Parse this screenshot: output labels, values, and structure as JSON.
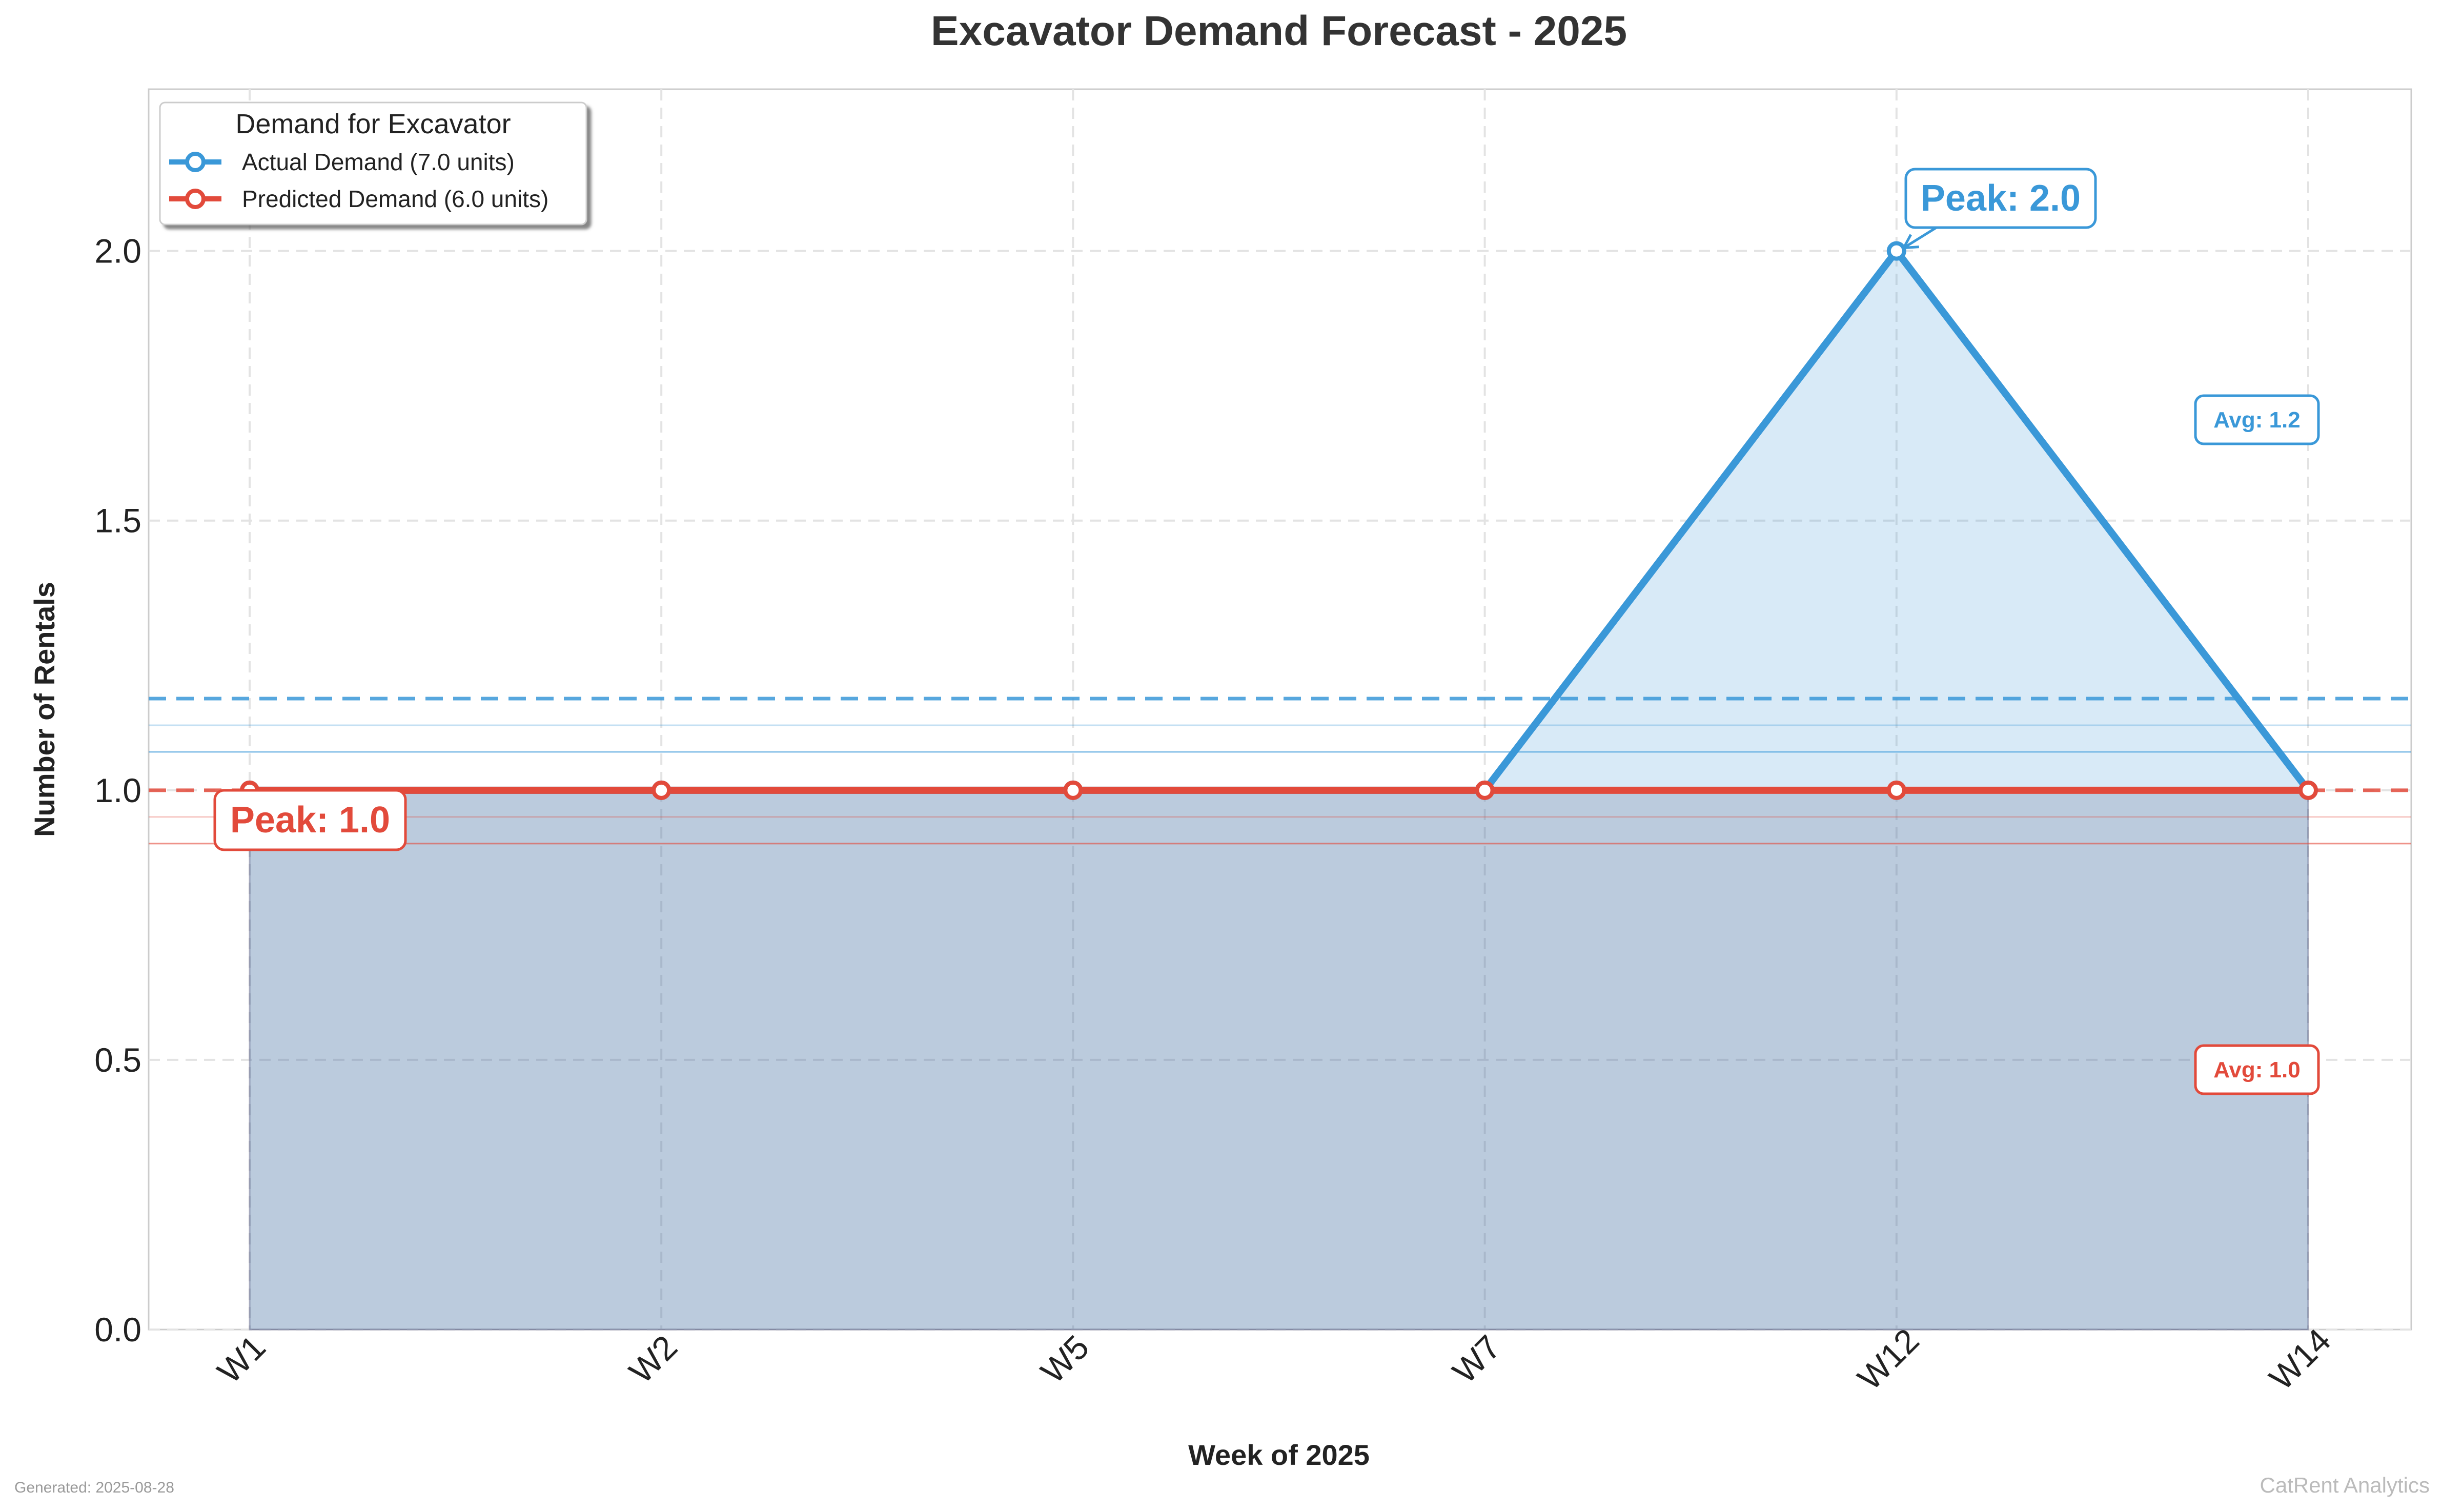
{
  "chart_data": {
    "type": "line",
    "title": "Excavator Demand Forecast - 2025",
    "xlabel": "Week of 2025",
    "ylabel": "Number of Rentals",
    "categories": [
      "W1",
      "W2",
      "W5",
      "W7",
      "W12",
      "W14"
    ],
    "ylim": [
      0,
      2.3
    ],
    "yticks": [
      "0.0",
      "0.5",
      "1.0",
      "1.5",
      "2.0"
    ],
    "ytick_values": [
      0,
      0.5,
      1.0,
      1.5,
      2.0
    ],
    "grid": true,
    "legend": {
      "title": "Demand for Excavator",
      "placement": "top-left"
    },
    "series": [
      {
        "name": "Actual Demand (7.0 units)",
        "values": [
          1,
          1,
          1,
          1,
          2,
          1
        ],
        "color": "#3a98d8",
        "peak_label": "Peak: 2.0",
        "peak_value": 2.0,
        "avg_label": "Avg: 1.2",
        "avg_value": 1.17
      },
      {
        "name": "Predicted Demand (6.0 units)",
        "values": [
          1,
          1,
          1,
          1,
          1,
          1
        ],
        "color": "#e24a3b",
        "peak_label": "Peak: 1.0",
        "peak_value": 1.0,
        "avg_label": "Avg: 1.0",
        "avg_value": 1.0
      }
    ]
  },
  "footer": {
    "generated": "Generated: 2025-08-28",
    "brand": "CatRent Analytics"
  }
}
